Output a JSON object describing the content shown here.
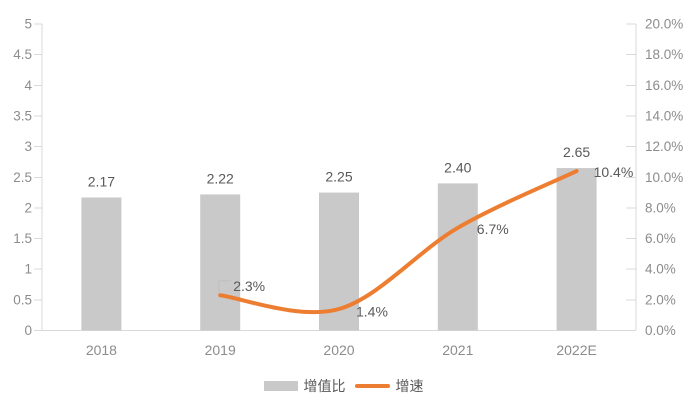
{
  "chart_data": {
    "type": "bar",
    "combo": "bar+line",
    "title": "",
    "categories": [
      "2018",
      "2019",
      "2020",
      "2021",
      "2022E"
    ],
    "series": [
      {
        "name": "增值比",
        "type": "bar",
        "axis": "left",
        "color": "#C9C9C9",
        "values": [
          2.17,
          2.22,
          2.25,
          2.4,
          2.65
        ],
        "data_labels": [
          "2.17",
          "2.22",
          "2.25",
          "2.40",
          "2.65"
        ]
      },
      {
        "name": "增速",
        "type": "line",
        "axis": "right",
        "color": "#ED7D31",
        "values": [
          null,
          2.3,
          1.4,
          6.7,
          10.4
        ],
        "data_labels": [
          null,
          "2.3%",
          "1.4%",
          "6.7%",
          "10.4%"
        ]
      }
    ],
    "left_axis": {
      "min": 0,
      "max": 5,
      "step": 0.5,
      "tick_labels": [
        "0",
        "0.5",
        "1",
        "1.5",
        "2",
        "2.5",
        "3",
        "3.5",
        "4",
        "4.5",
        "5"
      ]
    },
    "right_axis": {
      "min": 0,
      "max": 20,
      "step": 2,
      "tick_labels": [
        "0.0%",
        "2.0%",
        "4.0%",
        "6.0%",
        "8.0%",
        "10.0%",
        "12.0%",
        "14.0%",
        "16.0%",
        "18.0%",
        "20.0%"
      ]
    },
    "grid": false,
    "legend_position": "bottom"
  },
  "style": {
    "background": "#FFFFFF",
    "bar_color": "#C9C9C9",
    "line_color": "#ED7D31",
    "axis_line_color": "#D9D9D9",
    "axis_text_color": "#8C8C8C",
    "data_label_color": "#595959",
    "leader_line_color": "#BFBFBF"
  }
}
